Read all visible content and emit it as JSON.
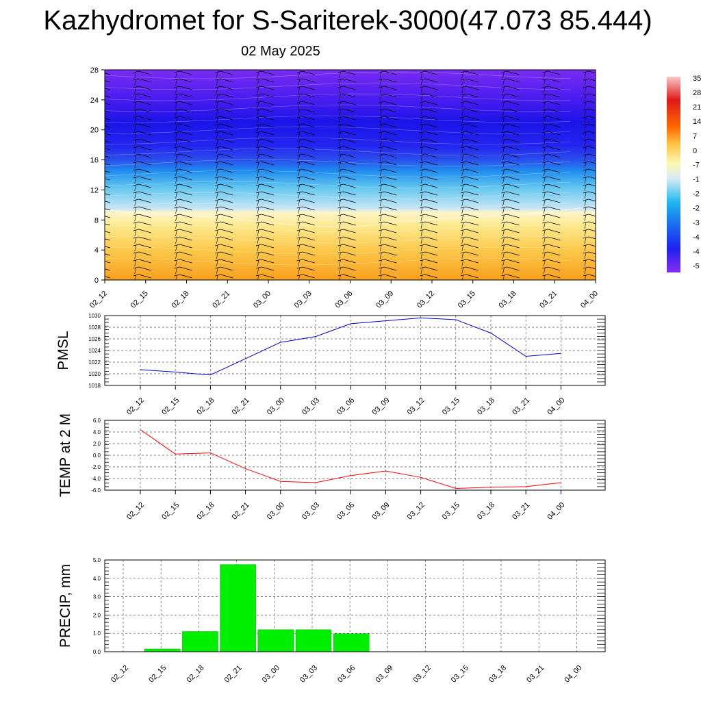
{
  "title": "Kazhydromet for S-Sariterek-3000(47.073 85.444)",
  "subtitle": "02 May 2025",
  "time_labels": [
    "02_12",
    "02_15",
    "02_18",
    "02_21",
    "03_00",
    "03_03",
    "03_06",
    "03_09",
    "03_12",
    "03_15",
    "03_18",
    "03_21",
    "04_00"
  ],
  "colorbar_labels": [
    "35",
    "28",
    "21",
    "14",
    "7",
    "0",
    "-7",
    "-1",
    "-2",
    "-2",
    "-3",
    "-4",
    "-4",
    "-5"
  ],
  "chart_data": [
    {
      "type": "heatmap",
      "panel": "cross-section",
      "x_categories": [
        "02_12",
        "02_15",
        "02_18",
        "02_21",
        "03_00",
        "03_03",
        "03_06",
        "03_09",
        "03_12",
        "03_15",
        "03_18",
        "03_21",
        "04_00"
      ],
      "y_ticks": [
        "0",
        "4",
        "8",
        "12",
        "16",
        "20",
        "24",
        "28"
      ],
      "ylim": [
        0,
        28
      ],
      "freezing_level": [
        9.3,
        8.9,
        8.6,
        8.3,
        7.6,
        7.2,
        7.0,
        7.6,
        8.1,
        8.4,
        8.6,
        9.2,
        9.8
      ]
    },
    {
      "type": "line",
      "ylabel": "PMSL",
      "categories": [
        "02_12",
        "02_15",
        "02_18",
        "02_21",
        "03_00",
        "03_03",
        "03_06",
        "03_09",
        "03_12",
        "03_15",
        "03_18",
        "03_21",
        "04_00"
      ],
      "values": [
        1020.7,
        1020.3,
        1019.8,
        1022.6,
        1025.4,
        1026.4,
        1028.6,
        1029.1,
        1029.6,
        1029.3,
        1027.0,
        1023.0,
        1023.5
      ],
      "ylim": [
        1018,
        1030
      ],
      "y_ticks": [
        "1018",
        "1020",
        "1022",
        "1024",
        "1026",
        "1028",
        "1030"
      ],
      "color": "#0000cc",
      "grid": true
    },
    {
      "type": "line",
      "ylabel": "TEMP at 2 M",
      "categories": [
        "02_12",
        "02_15",
        "02_18",
        "02_21",
        "03_00",
        "03_03",
        "03_06",
        "03_09",
        "03_12",
        "03_15",
        "03_18",
        "03_21",
        "04_00"
      ],
      "values": [
        4.4,
        0.2,
        0.4,
        -2.3,
        -4.5,
        -4.7,
        -3.5,
        -2.7,
        -3.8,
        -5.7,
        -5.5,
        -5.4,
        -4.7
      ],
      "ylim": [
        -6,
        6
      ],
      "y_ticks": [
        "-6.0",
        "-4.0",
        "-2.0",
        "0.0",
        "2.0",
        "4.0",
        "6.0"
      ],
      "color": "#ff0000",
      "grid": true
    },
    {
      "type": "bar",
      "ylabel": "PRECIP, mm",
      "categories": [
        "02_12",
        "02_15",
        "02_18",
        "02_21",
        "03_00",
        "03_03",
        "03_06",
        "03_09",
        "03_12",
        "03_15",
        "03_18",
        "03_21",
        "04_00"
      ],
      "values": [
        0.0,
        0.15,
        1.1,
        4.75,
        1.2,
        1.2,
        0.98,
        0.0,
        0.0,
        0.0,
        0.0,
        0.0,
        0.0
      ],
      "ylim": [
        0,
        5
      ],
      "y_ticks": [
        "0.0",
        "1.0",
        "2.0",
        "3.0",
        "4.0",
        "5.0"
      ],
      "color": "#00ee00",
      "grid": true
    }
  ]
}
